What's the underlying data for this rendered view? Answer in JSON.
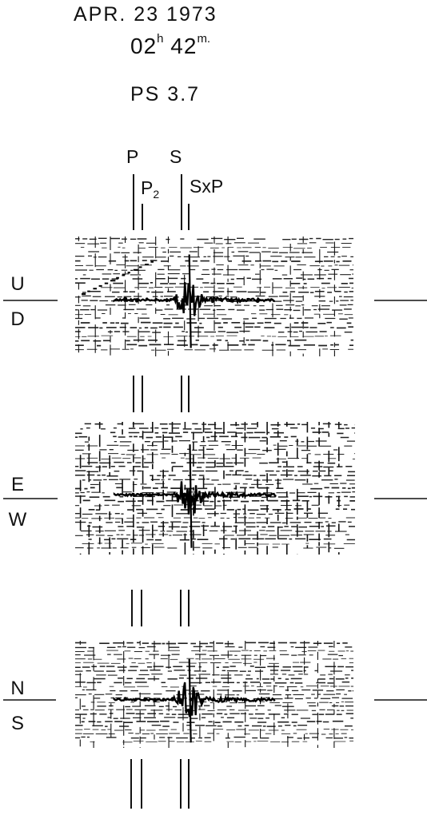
{
  "header": {
    "date": "APR. 23  1973",
    "hour": "02",
    "hour_unit": "h",
    "minute": "42",
    "minute_unit": "m.",
    "magnitude": "PS 3.7"
  },
  "phases": {
    "p": "P",
    "s": "S",
    "p2_main": "P",
    "p2_sub": "2",
    "sxp": "SxP"
  },
  "components": [
    {
      "top": "U",
      "bottom": "D"
    },
    {
      "top": "E",
      "bottom": "W"
    },
    {
      "top": "N",
      "bottom": "S"
    }
  ]
}
